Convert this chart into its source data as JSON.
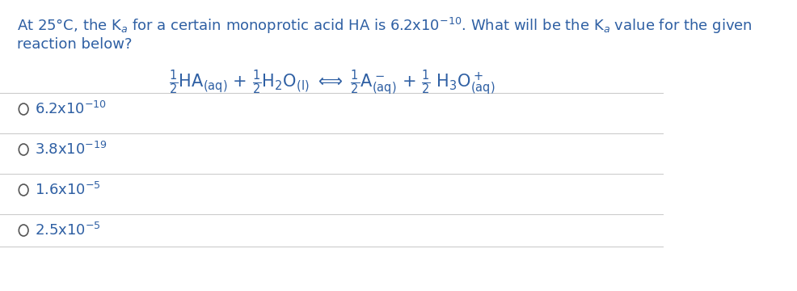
{
  "background_color": "#ffffff",
  "text_color": "#2e5fa3",
  "title_line1": "At 25°C, the K",
  "title_sub": "a",
  "title_line1b": " for a certain monoprotic acid HA is 6.2x10",
  "title_sup": "-10",
  "title_line1c": ". What will be the K",
  "title_line1d": " value for the given",
  "title_line2": "reaction below?",
  "equation": "$\\frac{1}{2}$HA$_{(aq)}$ + $\\frac{1}{2}$H$_2$O$_{(l)}$ $\\rightleftharpoons$ $\\frac{1}{2}$A$^-_{(aq)}$ + $\\frac{1}{2}$ H$_3$O$^+_{(aq)}$",
  "options": [
    "6.2x10⁻¹⁰",
    "3.8x10⁻¹⁹",
    "1.6x10⁻⁵",
    "2.5x10⁻⁵"
  ],
  "options_display": [
    [
      "6.2x10",
      "-10"
    ],
    [
      "3.8x10",
      "-19"
    ],
    [
      "1.6x10",
      "-5"
    ],
    [
      "2.5x10",
      "-5"
    ]
  ],
  "divider_color": "#cccccc",
  "circle_color": "#555555",
  "font_size_title": 13,
  "font_size_options": 13,
  "font_size_equation": 14
}
